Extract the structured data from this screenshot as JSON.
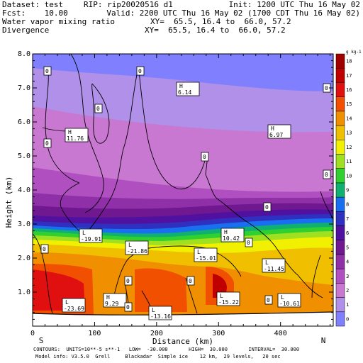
{
  "header": {
    "dataset": "Dataset: test",
    "rip": "RIP: rip20020516 d1",
    "init": "Init: 1200 UTC Thu 16 May 02",
    "fcst": "Fcst:    10.00",
    "valid": "Valid: 2200 UTC Thu 16 May 02 (1700 CDT Thu 16 May 02)",
    "field1": "Water vapor mixing ratio",
    "xy1": "XY=  65.5, 16.4 to  66.0, 57.2",
    "field2": "Divergence",
    "xy2": "XY=  65.5, 16.4 to  66.0, 57.2"
  },
  "footer": {
    "line1": "CONTOURS:  UNITS=10**-5 s**-1   LOW=  -30.000       HIGH=  30.000       INTERVAL=  30.000",
    "line2": "Model info: V3.5.0  Grell     Blackadar  Simple ice    12 km,  29 levels,   20 sec"
  },
  "chart_data": {
    "type": "heatmap",
    "xlabel": "Distance (km)",
    "ylabel": "Height (km)",
    "xlim": [
      0,
      485
    ],
    "ylim": [
      0,
      8.0
    ],
    "x_ticks": [
      "0",
      "100",
      "200",
      "300",
      "400"
    ],
    "y_ticks": [
      "1.0",
      "2.0",
      "3.0",
      "4.0",
      "5.0",
      "6.0",
      "7.0",
      "8.0"
    ],
    "x_end_labels": {
      "left": "S",
      "right": "N"
    },
    "colorbar": {
      "unit": "g kg-1",
      "levels": [
        "0",
        "1",
        "2",
        "3",
        "4",
        "5",
        "6",
        "7",
        "8",
        "9",
        "10",
        "11",
        "12",
        "13",
        "14",
        "15",
        "16",
        "17",
        "18"
      ],
      "colors": [
        "#8080ff",
        "#b090e8",
        "#c878d0",
        "#b050c0",
        "#9030a8",
        "#701890",
        "#5010a0",
        "#3030c0",
        "#1870f0",
        "#10b070",
        "#30d030",
        "#a0e020",
        "#f0f000",
        "#f0c000",
        "#f09000",
        "#f05000",
        "#e01010",
        "#c00000",
        "#a00000"
      ]
    },
    "extrema_labels": [
      {
        "kind": "H",
        "value": "6.14"
      },
      {
        "kind": "H",
        "value": "11.76"
      },
      {
        "kind": "H",
        "value": "6.97"
      },
      {
        "kind": "L",
        "value": "-19.91"
      },
      {
        "kind": "L",
        "value": "-21.86"
      },
      {
        "kind": "H",
        "value": "10.42"
      },
      {
        "kind": "L",
        "value": "-15.01"
      },
      {
        "kind": "L",
        "value": "-11.45"
      },
      {
        "kind": "L",
        "value": "-23.69"
      },
      {
        "kind": "H",
        "value": "9.29"
      },
      {
        "kind": "L",
        "value": "-13.16"
      },
      {
        "kind": "L",
        "value": "-15.22"
      },
      {
        "kind": "L",
        "value": "-10.61"
      }
    ],
    "contour_value_label": "0"
  }
}
